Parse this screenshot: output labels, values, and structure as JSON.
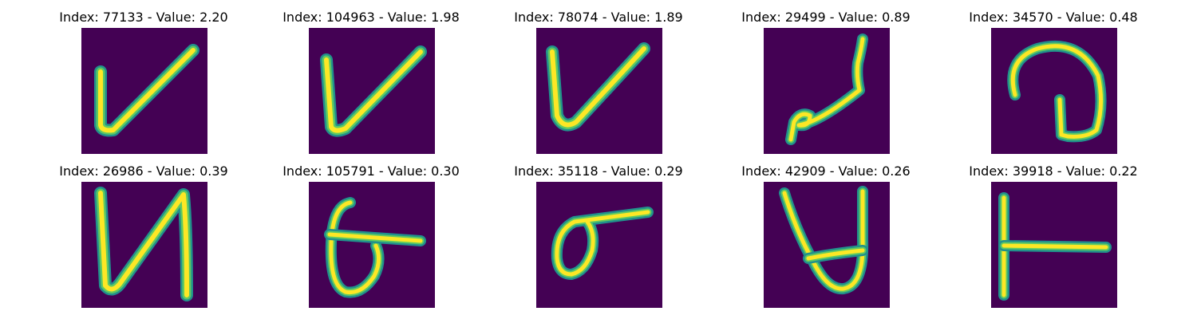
{
  "figure": {
    "panels": [
      {
        "title": "Index: 77133 - Value: 2.20",
        "glyph": "checkmark-v",
        "bg": "#440154"
      },
      {
        "title": "Index: 104963 - Value: 1.98",
        "glyph": "checkmark-v",
        "bg": "#440154"
      },
      {
        "title": "Index: 78074 - Value: 1.89",
        "glyph": "checkmark-v",
        "bg": "#440154"
      },
      {
        "title": "Index: 29499 - Value: 0.89",
        "glyph": "squiggle-loop",
        "bg": "#440154"
      },
      {
        "title": "Index: 34570 - Value: 0.48",
        "glyph": "loop-with-stem",
        "bg": "#440154"
      },
      {
        "title": "Index: 26986 - Value: 0.39",
        "glyph": "letter-n-shape",
        "bg": "#440154"
      },
      {
        "title": "Index: 105791 - Value: 0.30",
        "glyph": "six-with-bar",
        "bg": "#440154"
      },
      {
        "title": "Index: 35118 - Value: 0.29",
        "glyph": "sigma-loop",
        "bg": "#440154"
      },
      {
        "title": "Index: 42909 - Value: 0.26",
        "glyph": "cup-with-loop",
        "bg": "#440154"
      },
      {
        "title": "Index: 39918 - Value: 0.22",
        "glyph": "letter-t-sideways",
        "bg": "#440154"
      }
    ],
    "colors": {
      "background": "#440154",
      "edge_teal": "#21918c",
      "mid_green": "#5ec962",
      "core_yellow": "#fde725"
    }
  }
}
